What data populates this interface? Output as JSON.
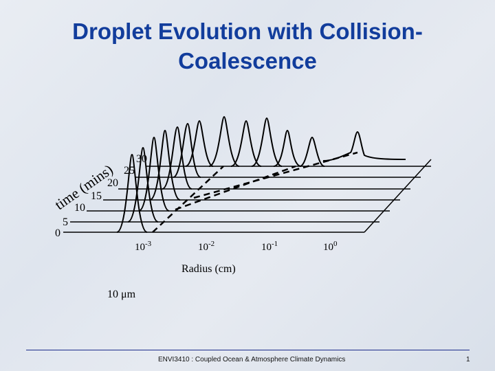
{
  "slide": {
    "title_line1": "Droplet Evolution with Collision-",
    "title_line2": "Coalescence",
    "footer": "ENVI3410 : Coupled Ocean & Atmosphere Climate Dynamics",
    "page_number": "1"
  },
  "diagram": {
    "time_axis_label": "time (mins)",
    "time_ticks": [
      "0",
      "5",
      "10",
      "15",
      "20",
      "25",
      "30"
    ],
    "radius_ticks": [
      {
        "base": "10",
        "exp": "-3"
      },
      {
        "base": "10",
        "exp": "-2"
      },
      {
        "base": "10",
        "exp": "-1"
      },
      {
        "base": "10",
        "exp": "0"
      }
    ],
    "radius_label": "Radius (cm)",
    "size_marker": "10 μm"
  }
}
